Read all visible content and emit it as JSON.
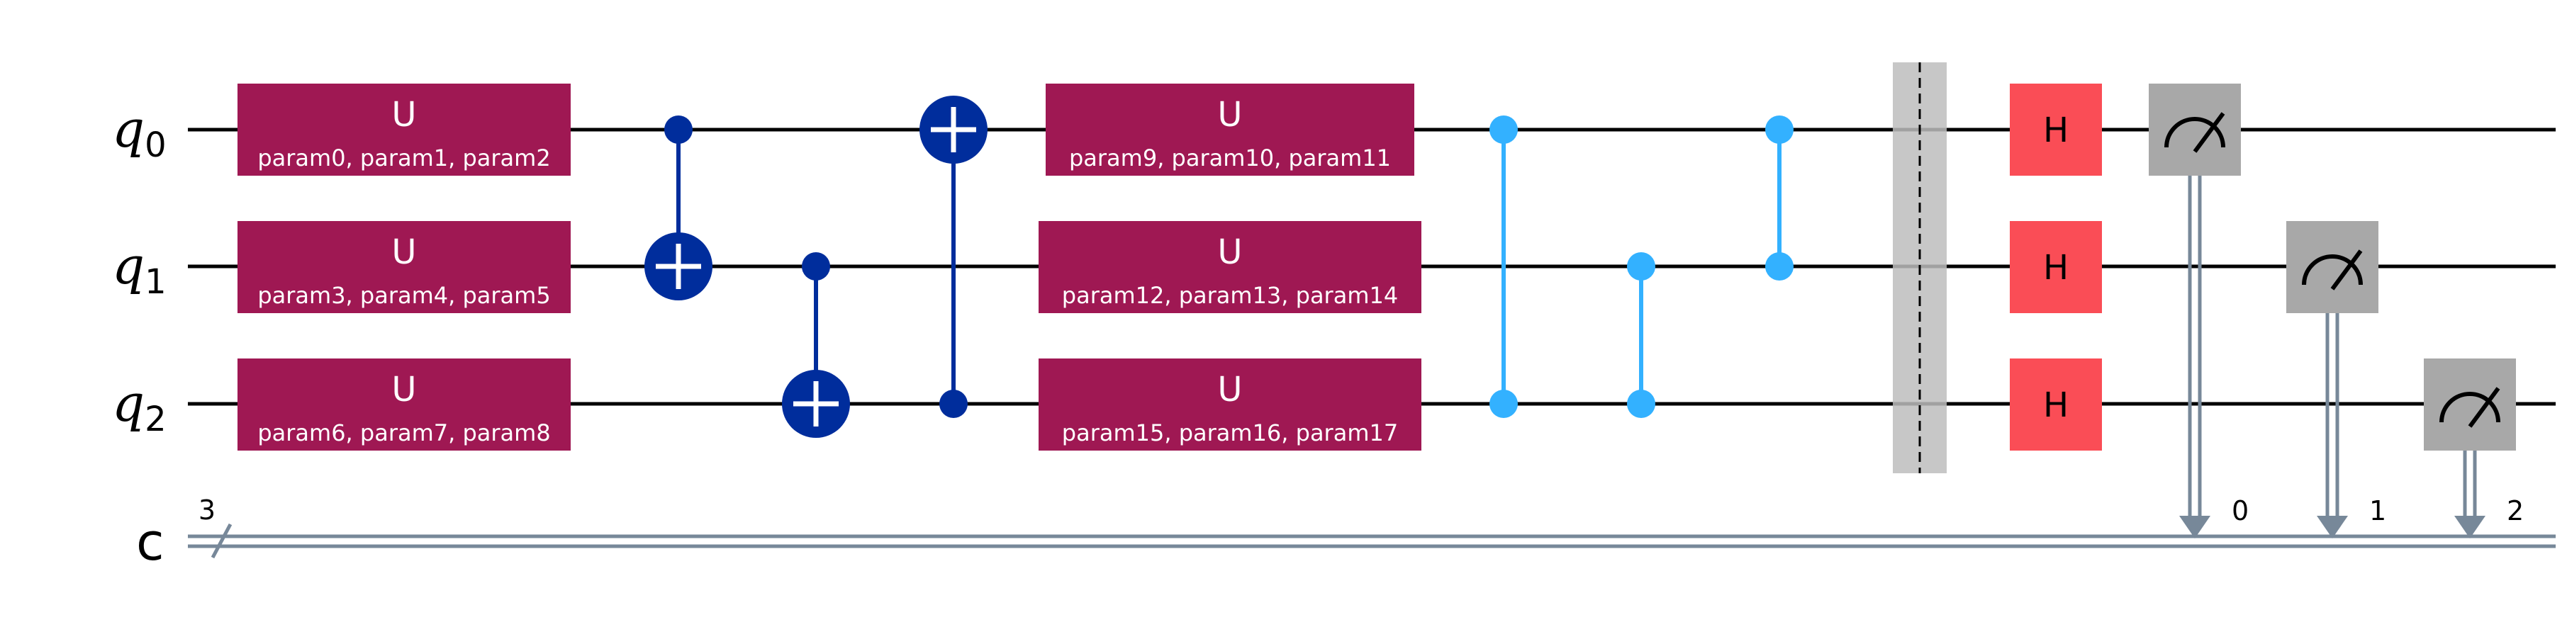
{
  "qubits": [
    {
      "name": "q",
      "index": "0"
    },
    {
      "name": "q",
      "index": "1"
    },
    {
      "name": "q",
      "index": "2"
    }
  ],
  "classical_register": {
    "name": "c",
    "size": "3",
    "bits": [
      "0",
      "1",
      "2"
    ]
  },
  "colors": {
    "u_gate": "#9F1853",
    "cnot": "#002D9C",
    "cz": "#33B1FF",
    "h_gate": "#FA4D56",
    "measure": "#A8A8A8",
    "barrier": "#BDBDBD",
    "classical_wire": "#778899"
  },
  "u_gates_col1": [
    {
      "name": "U",
      "params": "param0, param1, param2"
    },
    {
      "name": "U",
      "params": "param3, param4, param5"
    },
    {
      "name": "U",
      "params": "param6, param7, param8"
    }
  ],
  "u_gates_col2": [
    {
      "name": "U",
      "params": "param9, param10, param11"
    },
    {
      "name": "U",
      "params": "param12, param13, param14"
    },
    {
      "name": "U",
      "params": "param15, param16, param17"
    }
  ],
  "h_gates": [
    {
      "name": "H"
    },
    {
      "name": "H"
    },
    {
      "name": "H"
    }
  ],
  "cnots": [
    {
      "control": 0,
      "target": 1
    },
    {
      "control": 1,
      "target": 2
    },
    {
      "control": 2,
      "target": 0
    }
  ],
  "czs": [
    {
      "a": 0,
      "b": 2
    },
    {
      "a": 1,
      "b": 2
    },
    {
      "a": 0,
      "b": 1
    }
  ],
  "measurements": [
    {
      "qubit": 0,
      "cbit": "0"
    },
    {
      "qubit": 1,
      "cbit": "1"
    },
    {
      "qubit": 2,
      "cbit": "2"
    }
  ]
}
